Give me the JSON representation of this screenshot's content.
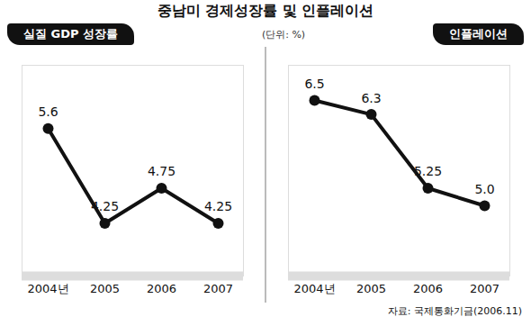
{
  "title": "중남미 경제성장률 및 인플레이션",
  "subtitle": "(단위: %)",
  "source": "자료: 국제통화기금(2006.11)",
  "chart_data": [
    {
      "type": "line",
      "title": "실질 GDP 성장률",
      "categories": [
        "2004년",
        "2005",
        "2006",
        "2007"
      ],
      "values": [
        5.6,
        4.25,
        4.75,
        4.25
      ],
      "color": "#111111",
      "marker": "circle",
      "ylim": [
        3.5,
        6.5
      ],
      "yticks": [],
      "data_labels": true,
      "tick_labels": "x"
    },
    {
      "type": "line",
      "title": "인플레이션",
      "categories": [
        "2004년",
        "2005",
        "2006",
        "2007"
      ],
      "values": [
        6.5,
        6.3,
        5.25,
        5.0
      ],
      "value_labels": [
        "6.5",
        "6.3",
        "5.25",
        "5.0"
      ],
      "color": "#111111",
      "marker": "circle",
      "ylim": [
        4,
        7
      ],
      "yticks": [],
      "data_labels": true,
      "tick_labels": "x"
    }
  ]
}
